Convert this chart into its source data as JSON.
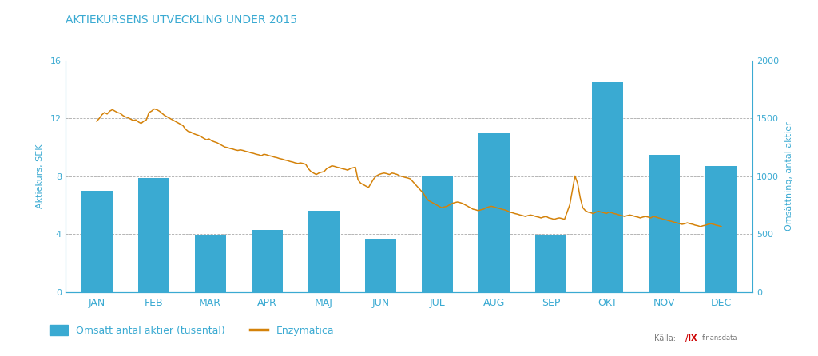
{
  "title": "AKTIEKURSENS UTVECKLING UNDER 2015",
  "months": [
    "JAN",
    "FEB",
    "MAR",
    "APR",
    "MAJ",
    "JUN",
    "JUL",
    "AUG",
    "SEP",
    "OKT",
    "NOV",
    "DEC"
  ],
  "bar_values": [
    7.0,
    7.9,
    3.9,
    4.3,
    5.6,
    3.7,
    8.0,
    11.0,
    3.9,
    14.5,
    9.5,
    8.7
  ],
  "bar_color": "#3aaad2",
  "line_color": "#d4820a",
  "left_ylim": [
    0,
    16
  ],
  "left_yticks": [
    0,
    4,
    8,
    12,
    16
  ],
  "right_ylim": [
    0,
    2000
  ],
  "right_yticks": [
    0,
    500,
    1000,
    1500,
    2000
  ],
  "left_ylabel": "Aktiekurs, SEK",
  "right_ylabel": "Omsättning, antal aktier",
  "legend_bar_label": "Omsatt antal aktier (tusental)",
  "legend_line_label": "Enzymatica",
  "background_color": "#ffffff",
  "title_color": "#3aaad2",
  "axis_color": "#3aaad2",
  "grid_color": "#aaaaaa",
  "line_data": [
    11.8,
    12.0,
    12.25,
    12.4,
    12.3,
    12.5,
    12.6,
    12.5,
    12.4,
    12.35,
    12.2,
    12.1,
    12.05,
    11.95,
    11.85,
    11.9,
    11.75,
    11.65,
    11.8,
    11.9,
    12.4,
    12.5,
    12.65,
    12.6,
    12.5,
    12.35,
    12.2,
    12.1,
    12.0,
    11.9,
    11.8,
    11.7,
    11.6,
    11.5,
    11.25,
    11.1,
    11.05,
    10.95,
    10.88,
    10.82,
    10.72,
    10.62,
    10.52,
    10.58,
    10.45,
    10.38,
    10.32,
    10.22,
    10.12,
    10.02,
    9.98,
    9.92,
    9.88,
    9.82,
    9.78,
    9.82,
    9.78,
    9.72,
    9.68,
    9.62,
    9.58,
    9.52,
    9.48,
    9.42,
    9.52,
    9.48,
    9.42,
    9.38,
    9.32,
    9.28,
    9.22,
    9.18,
    9.12,
    9.08,
    9.02,
    8.98,
    8.92,
    8.88,
    8.92,
    8.88,
    8.82,
    8.52,
    8.32,
    8.22,
    8.12,
    8.22,
    8.28,
    8.32,
    8.52,
    8.62,
    8.72,
    8.68,
    8.62,
    8.58,
    8.52,
    8.48,
    8.42,
    8.52,
    8.58,
    8.62,
    7.75,
    7.52,
    7.42,
    7.32,
    7.22,
    7.52,
    7.82,
    8.02,
    8.12,
    8.18,
    8.22,
    8.18,
    8.12,
    8.22,
    8.18,
    8.12,
    8.02,
    7.98,
    7.92,
    7.88,
    7.82,
    7.62,
    7.42,
    7.22,
    7.02,
    6.82,
    6.52,
    6.32,
    6.22,
    6.12,
    6.02,
    5.92,
    5.82,
    5.88,
    5.92,
    6.02,
    6.12,
    6.18,
    6.22,
    6.18,
    6.12,
    6.02,
    5.92,
    5.82,
    5.72,
    5.68,
    5.62,
    5.68,
    5.72,
    5.82,
    5.88,
    5.92,
    5.88,
    5.82,
    5.78,
    5.72,
    5.68,
    5.62,
    5.52,
    5.48,
    5.42,
    5.38,
    5.32,
    5.28,
    5.22,
    5.28,
    5.32,
    5.28,
    5.22,
    5.18,
    5.12,
    5.18,
    5.22,
    5.12,
    5.08,
    5.02,
    5.08,
    5.12,
    5.08,
    5.02,
    5.52,
    6.02,
    7.02,
    8.02,
    7.52,
    6.52,
    5.82,
    5.62,
    5.52,
    5.48,
    5.42,
    5.52,
    5.58,
    5.52,
    5.48,
    5.42,
    5.52,
    5.48,
    5.42,
    5.38,
    5.32,
    5.28,
    5.22,
    5.28,
    5.32,
    5.28,
    5.22,
    5.18,
    5.12,
    5.18,
    5.22,
    5.18,
    5.12,
    5.22,
    5.18,
    5.12,
    5.08,
    5.02,
    4.98,
    4.92,
    4.88,
    4.82,
    4.78,
    4.72,
    4.68,
    4.72,
    4.78,
    4.72,
    4.68,
    4.62,
    4.58,
    4.52,
    4.58,
    4.62,
    4.68,
    4.72,
    4.68,
    4.62,
    4.58,
    4.52
  ]
}
